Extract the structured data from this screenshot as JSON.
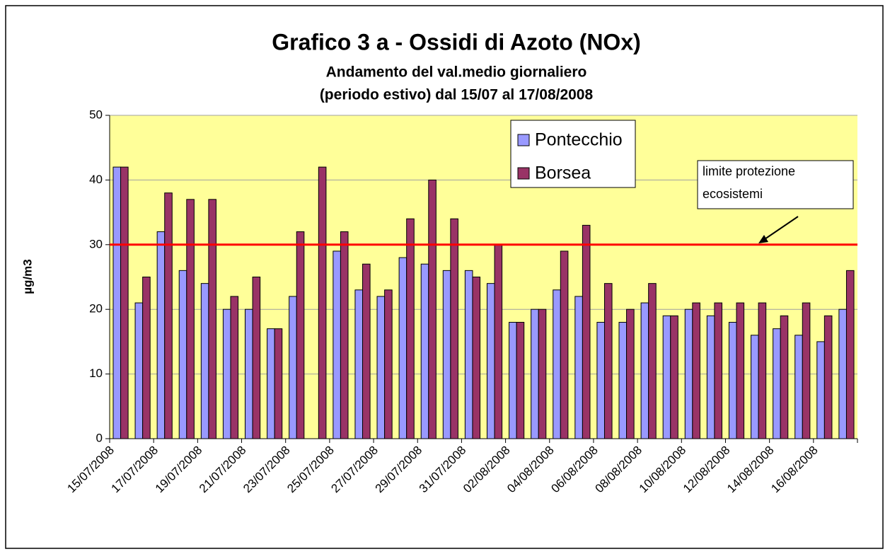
{
  "chart_data": {
    "type": "bar",
    "title": "Grafico 3 a - Ossidi di Azoto (NOx)",
    "subtitle_lines": [
      "Andamento del val.medio giornaliero",
      "(periodo estivo) dal 15/07 al 17/08/2008"
    ],
    "y_label": "µg/m3",
    "categories": [
      "15/07/2008",
      null,
      "17/07/2008",
      null,
      "19/07/2008",
      null,
      "21/07/2008",
      null,
      "23/07/2008",
      null,
      "25/07/2008",
      null,
      "27/07/2008",
      null,
      "29/07/2008",
      null,
      "31/07/2008",
      null,
      "02/08/2008",
      null,
      "04/08/2008",
      null,
      "06/08/2008",
      null,
      "08/08/2008",
      null,
      "10/08/2008",
      null,
      "12/08/2008",
      null,
      "14/08/2008",
      null,
      "16/08/2008",
      null
    ],
    "series": [
      {
        "name": "Pontecchio",
        "color": "#9999ff",
        "values": [
          42,
          21,
          32,
          26,
          24,
          20,
          20,
          17,
          22,
          null,
          29,
          23,
          22,
          28,
          27,
          26,
          26,
          24,
          18,
          20,
          23,
          22,
          18,
          18,
          21,
          19,
          20,
          19,
          18,
          16,
          17,
          16,
          15,
          20
        ]
      },
      {
        "name": "Borsea",
        "color": "#993366",
        "values": [
          42,
          25,
          38,
          37,
          37,
          22,
          25,
          17,
          32,
          42,
          32,
          27,
          23,
          34,
          40,
          34,
          25,
          30,
          18,
          20,
          29,
          33,
          24,
          20,
          24,
          19,
          21,
          21,
          21,
          21,
          19,
          21,
          19,
          26
        ]
      }
    ],
    "reference_line": {
      "value": 30,
      "color": "#ff0000",
      "label_lines": [
        "limite protezione",
        "ecosistemi"
      ]
    },
    "ylim": [
      0,
      50
    ],
    "yticks": [
      0,
      10,
      20,
      30,
      40,
      50
    ],
    "grid": true,
    "plot_background": "#ffff99"
  }
}
